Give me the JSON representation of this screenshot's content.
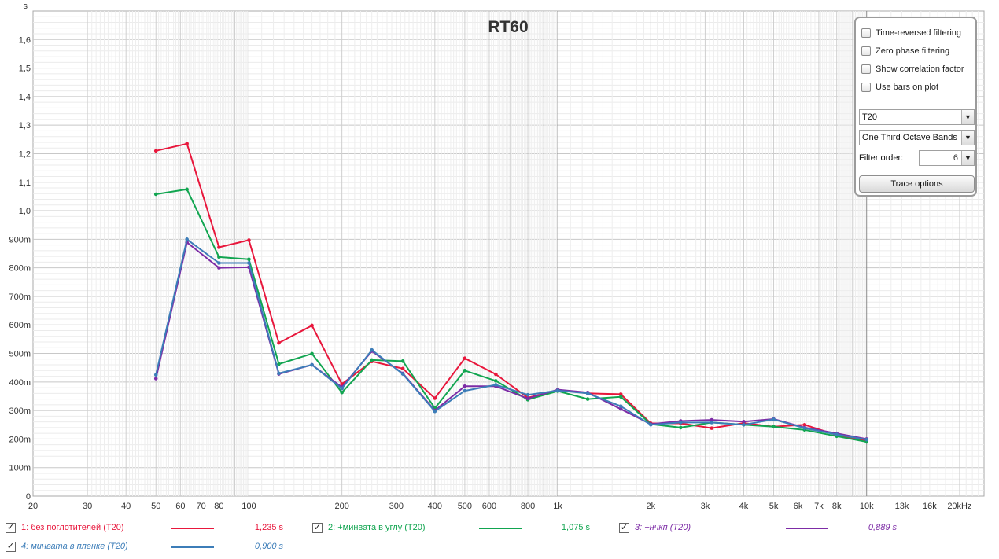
{
  "chart_data": {
    "type": "line",
    "title": "RT60",
    "ylabel": "s",
    "xlabel": "",
    "xscale": "log",
    "xlim": [
      20,
      24000
    ],
    "ylim": [
      0,
      1.7
    ],
    "grid": true,
    "x_ticks": [
      {
        "v": 20,
        "l": "20"
      },
      {
        "v": 30,
        "l": "30"
      },
      {
        "v": 40,
        "l": "40"
      },
      {
        "v": 50,
        "l": "50"
      },
      {
        "v": 60,
        "l": "60"
      },
      {
        "v": 70,
        "l": "70"
      },
      {
        "v": 80,
        "l": "80"
      },
      {
        "v": 100,
        "l": "100"
      },
      {
        "v": 200,
        "l": "200"
      },
      {
        "v": 300,
        "l": "300"
      },
      {
        "v": 400,
        "l": "400"
      },
      {
        "v": 500,
        "l": "500"
      },
      {
        "v": 600,
        "l": "600"
      },
      {
        "v": 800,
        "l": "800"
      },
      {
        "v": 1000,
        "l": "1k"
      },
      {
        "v": 2000,
        "l": "2k"
      },
      {
        "v": 3000,
        "l": "3k"
      },
      {
        "v": 4000,
        "l": "4k"
      },
      {
        "v": 5000,
        "l": "5k"
      },
      {
        "v": 6000,
        "l": "6k"
      },
      {
        "v": 7000,
        "l": "7k"
      },
      {
        "v": 8000,
        "l": "8k"
      },
      {
        "v": 10000,
        "l": "10k"
      },
      {
        "v": 13000,
        "l": "13k"
      },
      {
        "v": 16000,
        "l": "16k"
      },
      {
        "v": 20000,
        "l": "20kHz"
      }
    ],
    "y_ticks": [
      {
        "v": 0,
        "l": "0"
      },
      {
        "v": 0.1,
        "l": "100m"
      },
      {
        "v": 0.2,
        "l": "200m"
      },
      {
        "v": 0.3,
        "l": "300m"
      },
      {
        "v": 0.4,
        "l": "400m"
      },
      {
        "v": 0.5,
        "l": "500m"
      },
      {
        "v": 0.6,
        "l": "600m"
      },
      {
        "v": 0.7,
        "l": "700m"
      },
      {
        "v": 0.8,
        "l": "800m"
      },
      {
        "v": 0.9,
        "l": "900m"
      },
      {
        "v": 1.0,
        "l": "1,0"
      },
      {
        "v": 1.1,
        "l": "1,1"
      },
      {
        "v": 1.2,
        "l": "1,2"
      },
      {
        "v": 1.3,
        "l": "1,3"
      },
      {
        "v": 1.4,
        "l": "1,4"
      },
      {
        "v": 1.5,
        "l": "1,5"
      },
      {
        "v": 1.6,
        "l": "1,6"
      }
    ],
    "x": [
      50,
      63,
      80,
      100,
      125,
      160,
      200,
      250,
      315,
      400,
      500,
      630,
      800,
      1000,
      1250,
      1600,
      2000,
      2500,
      3150,
      4000,
      5000,
      6300,
      8000,
      10000
    ],
    "series": [
      {
        "name": "1: без поглотителей (T20)",
        "color": "#e8173c",
        "legend_value": "1,235 s",
        "values": [
          1.21,
          1.235,
          0.872,
          0.897,
          0.537,
          0.598,
          0.393,
          0.472,
          0.447,
          0.343,
          0.483,
          0.427,
          0.345,
          0.371,
          0.36,
          0.357,
          0.255,
          0.255,
          0.238,
          0.256,
          0.243,
          0.25,
          0.214,
          0.195
        ]
      },
      {
        "name": "2: +минвата в углу (T20)",
        "color": "#11a550",
        "legend_value": "1,075 s",
        "values": [
          1.058,
          1.075,
          0.838,
          0.83,
          0.463,
          0.499,
          0.363,
          0.477,
          0.473,
          0.308,
          0.44,
          0.404,
          0.338,
          0.368,
          0.34,
          0.348,
          0.252,
          0.24,
          0.258,
          0.25,
          0.243,
          0.232,
          0.21,
          0.19
        ]
      },
      {
        "name": "3: +нчкп (T20)",
        "color": "#7d2ca6",
        "legend_value": "0,889 s",
        "values": [
          0.412,
          0.889,
          0.8,
          0.802,
          0.428,
          0.46,
          0.382,
          0.508,
          0.43,
          0.3,
          0.385,
          0.385,
          0.342,
          0.373,
          0.363,
          0.305,
          0.252,
          0.263,
          0.267,
          0.261,
          0.27,
          0.24,
          0.22,
          0.2
        ]
      },
      {
        "name": "4: минвата в пленке (T20)",
        "color": "#3c7db8",
        "legend_value": "0,900 s",
        "values": [
          0.425,
          0.9,
          0.817,
          0.817,
          0.43,
          0.46,
          0.377,
          0.512,
          0.428,
          0.297,
          0.369,
          0.39,
          0.355,
          0.37,
          0.36,
          0.315,
          0.25,
          0.258,
          0.258,
          0.25,
          0.269,
          0.238,
          0.216,
          0.198
        ]
      }
    ]
  },
  "options": {
    "time_reversed": "Time-reversed filtering",
    "zero_phase": "Zero phase filtering",
    "show_correlation": "Show correlation factor",
    "use_bars": "Use bars on plot",
    "measure_select": "T20",
    "bands_select": "One Third Octave Bands",
    "filter_order_label": "Filter order:",
    "filter_order_value": "6",
    "trace_options": "Trace options",
    "dropdown_icon": "chevron-down-icon",
    "checkbox_state": "unchecked"
  },
  "legend": {
    "check_mark": "✓",
    "checked": true
  }
}
